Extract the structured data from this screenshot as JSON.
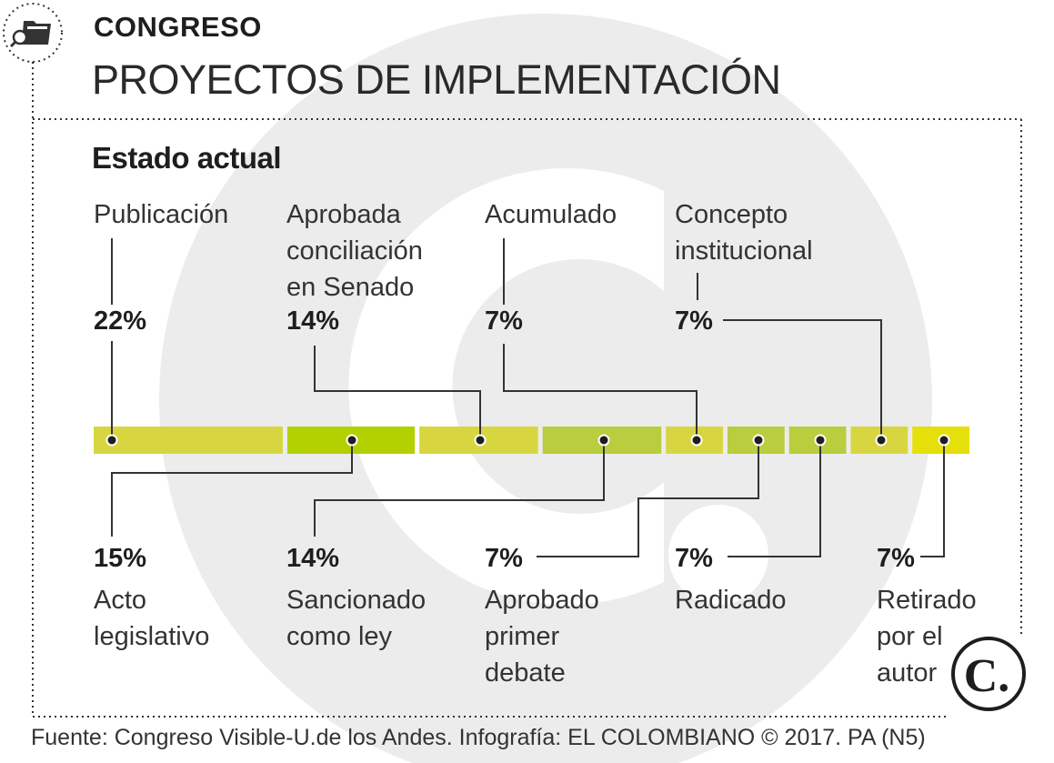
{
  "header": {
    "section": "CONGRESO",
    "title": "PROYECTOS DE IMPLEMENTACIÓN",
    "icon": "search-folder-icon"
  },
  "footer": {
    "source": "Fuente: Congreso Visible-U.de los Andes. Infografía: EL COLOMBIANO © 2017. PA (N5)"
  },
  "logo": {
    "text": "C.",
    "icon": "el-colombiano-logo"
  },
  "colors": {
    "yellow": "#e5df0a",
    "light_olive": "#d8d640",
    "lime": "#b3d000",
    "green": "#b9cd3e",
    "line": "#333333",
    "watermark": "#ececec"
  },
  "chart_data": {
    "type": "bar",
    "subtype": "stacked-100-percent-horizontal",
    "title": "Estado actual",
    "categories": [
      "Publicación",
      "Acto legislativo",
      "Aprobada conciliación en Senado",
      "Sancionado como ley",
      "Acumulado",
      "Aprobado primer debate",
      "Concepto institucional",
      "Radicado",
      "Retirado por el autor"
    ],
    "values": [
      22,
      15,
      14,
      14,
      7,
      7,
      7,
      7,
      7
    ],
    "segments": [
      {
        "color": "#d8d640",
        "values_index": [
          0
        ]
      },
      {
        "color": "#b3d000",
        "values_index": [
          1
        ]
      }
    ],
    "top_labels": [
      {
        "index": 0,
        "pct": "22%",
        "lines": [
          "Publicación"
        ]
      },
      {
        "index": 2,
        "pct": "14%",
        "lines": [
          "Aprobada",
          "conciliación",
          "en Senado"
        ]
      },
      {
        "index": 4,
        "pct": "7%",
        "lines": [
          "Acumulado"
        ]
      },
      {
        "index": 6,
        "pct": "7%",
        "lines": [
          "Concepto",
          "institucional"
        ]
      }
    ],
    "bottom_labels": [
      {
        "index": 1,
        "pct": "15%",
        "lines": [
          "Acto",
          "legislativo"
        ]
      },
      {
        "index": 3,
        "pct": "14%",
        "lines": [
          "Sancionado",
          "como ley"
        ]
      },
      {
        "index": 5,
        "pct": "7%",
        "lines": [
          "Aprobado",
          "primer",
          "debate"
        ]
      },
      {
        "index": 7,
        "pct": "7%",
        "lines": [
          "Radicado"
        ]
      },
      {
        "index": 8,
        "pct": "7%",
        "lines": [
          "Retirado",
          "por el",
          "autor"
        ]
      }
    ]
  }
}
